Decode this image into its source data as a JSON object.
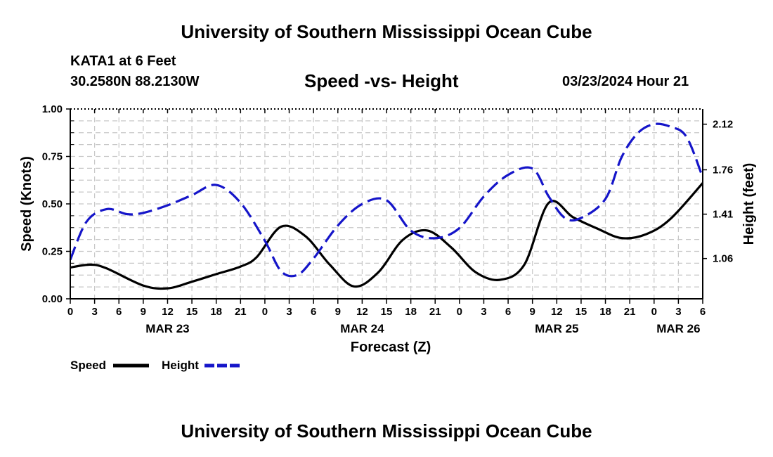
{
  "page": {
    "top_title": "University of Southern Mississippi Ocean Cube",
    "bottom_title": "University of Southern Mississippi Ocean Cube",
    "station": "KATA1 at 6 Feet",
    "coords": "30.2580N  88.2130W",
    "subtitle": "Speed -vs- Height",
    "datetime": "03/23/2024 Hour 21"
  },
  "chart_data": {
    "type": "line",
    "title": "Speed -vs- Height",
    "xlabel": "Forecast (Z)",
    "ylabel": "Speed (Knots)",
    "y2label": "Height (feet)",
    "x_hours_range": [
      0,
      78
    ],
    "ylim": [
      0,
      1.0
    ],
    "y2lim": [
      0.742,
      2.24
    ],
    "x_tick_hours": [
      0,
      3,
      6,
      9,
      12,
      15,
      18,
      21,
      24,
      27,
      30,
      33,
      36,
      39,
      42,
      45,
      48,
      51,
      54,
      57,
      60,
      63,
      66,
      69,
      72,
      75,
      78
    ],
    "x_tick_labels": [
      "0",
      "3",
      "6",
      "9",
      "12",
      "15",
      "18",
      "21",
      "0",
      "3",
      "6",
      "9",
      "12",
      "15",
      "18",
      "21",
      "0",
      "3",
      "6",
      "9",
      "12",
      "15",
      "18",
      "21",
      "0",
      "3",
      "6"
    ],
    "date_labels": [
      {
        "hour": 12,
        "label": "MAR 23"
      },
      {
        "hour": 36,
        "label": "MAR 24"
      },
      {
        "hour": 60,
        "label": "MAR 25"
      },
      {
        "hour": 75,
        "label": "MAR 26"
      }
    ],
    "y_ticks": [
      0,
      0.25,
      0.5,
      0.75,
      1.0
    ],
    "y_tick_labels": [
      "0.00",
      "0.25",
      "0.50",
      "0.75",
      "1.00"
    ],
    "y2_ticks": [
      1.06,
      1.41,
      1.76,
      2.12
    ],
    "y2_tick_labels": [
      "1.06",
      "1.41",
      "1.76",
      "2.12"
    ],
    "grid": true,
    "legend_position": "bottom-left",
    "series": [
      {
        "name": "Speed",
        "axis": "left",
        "color": "#000000",
        "dash": "solid",
        "hours": [
          0,
          2.5,
          4.5,
          9,
          12,
          15,
          18,
          21,
          23,
          26,
          29,
          32,
          35,
          38,
          41,
          44,
          47,
          50,
          53,
          56,
          59,
          62,
          65,
          68,
          71,
          74,
          78
        ],
        "values": [
          0.165,
          0.18,
          0.16,
          0.07,
          0.055,
          0.09,
          0.13,
          0.17,
          0.22,
          0.38,
          0.33,
          0.18,
          0.065,
          0.14,
          0.31,
          0.36,
          0.27,
          0.14,
          0.1,
          0.18,
          0.505,
          0.43,
          0.37,
          0.32,
          0.34,
          0.42,
          0.61
        ]
      },
      {
        "name": "Height",
        "axis": "right",
        "color": "#1515c9",
        "dash": "dashed",
        "hours": [
          0,
          2,
          4.5,
          7,
          9,
          12,
          15,
          18,
          21,
          24,
          26,
          28,
          30,
          33,
          36,
          39,
          42,
          45,
          48,
          51,
          54,
          57,
          59,
          61,
          63,
          66,
          68,
          70,
          72,
          74,
          76,
          78
        ],
        "values": [
          1.05,
          1.35,
          1.45,
          1.41,
          1.42,
          1.48,
          1.56,
          1.64,
          1.5,
          1.2,
          0.96,
          0.93,
          1.06,
          1.32,
          1.49,
          1.52,
          1.28,
          1.22,
          1.3,
          1.55,
          1.72,
          1.77,
          1.55,
          1.38,
          1.38,
          1.53,
          1.86,
          2.05,
          2.12,
          2.1,
          2.02,
          1.7
        ]
      }
    ]
  }
}
